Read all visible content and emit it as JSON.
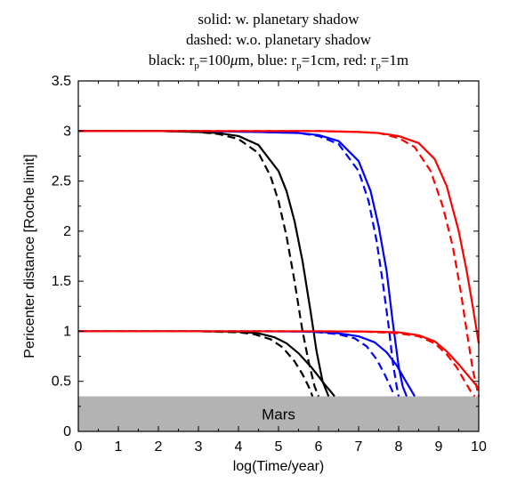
{
  "chart_data": {
    "type": "line",
    "title": {
      "line1": "solid: w. planetary shadow",
      "line2": "dashed: w.o. planetary shadow",
      "line3_parts": [
        "black: r",
        "p",
        "=100",
        "μ",
        "m, blue: r",
        "p",
        "=1cm, red: r",
        "p",
        "=1m"
      ]
    },
    "xlabel": "log(Time/year)",
    "ylabel": "Pericenter distance [Roche limit]",
    "xlim": [
      0,
      10
    ],
    "ylim": [
      0,
      3.5
    ],
    "xticks": [
      "0",
      "1",
      "2",
      "3",
      "4",
      "5",
      "6",
      "7",
      "8",
      "9",
      "10"
    ],
    "yticks": [
      "0",
      "0.5",
      "1",
      "1.5",
      "2",
      "2.5",
      "3",
      "3.5"
    ],
    "band": {
      "label": "Mars",
      "y_range": [
        0,
        0.35
      ],
      "color": "#b3b3b3"
    },
    "colors": {
      "black": "#000000",
      "blue": "#0000ff",
      "red": "#ff0000"
    },
    "series": [
      {
        "color": "black",
        "style": "solid",
        "x": [
          0,
          2.0,
          3.0,
          3.5,
          4.0,
          4.5,
          5.0,
          5.2,
          5.4,
          5.6,
          5.8,
          5.95,
          6.1,
          6.25
        ],
        "y": [
          3.0,
          3.0,
          2.99,
          2.98,
          2.95,
          2.86,
          2.6,
          2.4,
          2.1,
          1.7,
          1.2,
          0.8,
          0.5,
          0.35
        ]
      },
      {
        "color": "black",
        "style": "dashed",
        "x": [
          0,
          2.0,
          3.0,
          3.5,
          4.0,
          4.5,
          4.8,
          5.0,
          5.2,
          5.4,
          5.6,
          5.75,
          5.9,
          6.0
        ],
        "y": [
          3.0,
          3.0,
          2.99,
          2.97,
          2.92,
          2.78,
          2.55,
          2.3,
          1.95,
          1.5,
          1.0,
          0.7,
          0.45,
          0.35
        ]
      },
      {
        "color": "blue",
        "style": "solid",
        "x": [
          0,
          3.0,
          4.5,
          5.5,
          6.0,
          6.5,
          7.0,
          7.3,
          7.5,
          7.7,
          7.85,
          8.0,
          8.1,
          8.2
        ],
        "y": [
          3.0,
          3.0,
          2.99,
          2.98,
          2.96,
          2.9,
          2.7,
          2.4,
          2.05,
          1.6,
          1.1,
          0.65,
          0.45,
          0.35
        ]
      },
      {
        "color": "blue",
        "style": "dashed",
        "x": [
          0,
          3.0,
          4.5,
          5.5,
          6.0,
          6.5,
          7.0,
          7.25,
          7.45,
          7.6,
          7.75,
          7.85,
          7.95,
          8.0
        ],
        "y": [
          3.0,
          3.0,
          2.99,
          2.98,
          2.95,
          2.87,
          2.6,
          2.3,
          1.9,
          1.5,
          1.05,
          0.7,
          0.45,
          0.35
        ]
      },
      {
        "color": "red",
        "style": "solid",
        "x": [
          0,
          4.0,
          6.0,
          7.0,
          7.5,
          8.0,
          8.5,
          8.9,
          9.2,
          9.5,
          9.7,
          9.85,
          10.0
        ],
        "y": [
          3.0,
          3.0,
          3.0,
          2.99,
          2.98,
          2.95,
          2.88,
          2.72,
          2.45,
          2.0,
          1.6,
          1.25,
          0.88
        ]
      },
      {
        "color": "red",
        "style": "dashed",
        "x": [
          0,
          4.0,
          6.0,
          7.0,
          7.5,
          8.0,
          8.4,
          8.8,
          9.1,
          9.35,
          9.55,
          9.7,
          9.85,
          10.0
        ],
        "y": [
          3.0,
          3.0,
          3.0,
          2.99,
          2.98,
          2.93,
          2.84,
          2.6,
          2.25,
          1.85,
          1.4,
          1.0,
          0.62,
          0.35
        ]
      },
      {
        "color": "black",
        "style": "solid",
        "x": [
          0,
          2.0,
          3.0,
          4.0,
          4.5,
          4.9,
          5.2,
          5.5,
          5.8,
          6.0,
          6.15,
          6.3,
          6.4
        ],
        "y": [
          1.0,
          1.0,
          1.0,
          0.995,
          0.98,
          0.94,
          0.88,
          0.78,
          0.65,
          0.55,
          0.47,
          0.4,
          0.35
        ]
      },
      {
        "color": "black",
        "style": "dashed",
        "x": [
          0,
          2.0,
          3.0,
          4.0,
          4.4,
          4.8,
          5.1,
          5.4,
          5.6,
          5.75,
          5.85
        ],
        "y": [
          1.0,
          1.0,
          1.0,
          0.99,
          0.97,
          0.92,
          0.84,
          0.7,
          0.57,
          0.45,
          0.35
        ]
      },
      {
        "color": "blue",
        "style": "solid",
        "x": [
          0,
          3.0,
          4.5,
          5.5,
          6.0,
          6.5,
          7.0,
          7.4,
          7.7,
          7.95,
          8.15,
          8.3,
          8.4
        ],
        "y": [
          1.0,
          1.0,
          1.0,
          0.998,
          0.995,
          0.98,
          0.95,
          0.89,
          0.79,
          0.66,
          0.52,
          0.42,
          0.35
        ]
      },
      {
        "color": "blue",
        "style": "dashed",
        "x": [
          0,
          3.0,
          4.5,
          5.5,
          6.0,
          6.5,
          6.9,
          7.2,
          7.45,
          7.65,
          7.8,
          7.9
        ],
        "y": [
          1.0,
          1.0,
          1.0,
          0.998,
          0.99,
          0.97,
          0.93,
          0.85,
          0.72,
          0.57,
          0.44,
          0.35
        ]
      },
      {
        "color": "red",
        "style": "solid",
        "x": [
          0,
          4.0,
          6.0,
          7.0,
          7.5,
          8.0,
          8.5,
          8.9,
          9.2,
          9.5,
          9.75,
          10.0
        ],
        "y": [
          1.0,
          1.0,
          1.0,
          0.998,
          0.995,
          0.99,
          0.96,
          0.9,
          0.8,
          0.67,
          0.55,
          0.43
        ]
      },
      {
        "color": "red",
        "style": "dashed",
        "x": [
          0,
          4.0,
          6.0,
          7.0,
          7.5,
          8.0,
          8.5,
          8.9,
          9.2,
          9.45,
          9.65,
          9.8,
          9.9
        ],
        "y": [
          1.0,
          1.0,
          1.0,
          0.998,
          0.99,
          0.98,
          0.95,
          0.88,
          0.77,
          0.64,
          0.5,
          0.4,
          0.35
        ]
      }
    ]
  }
}
